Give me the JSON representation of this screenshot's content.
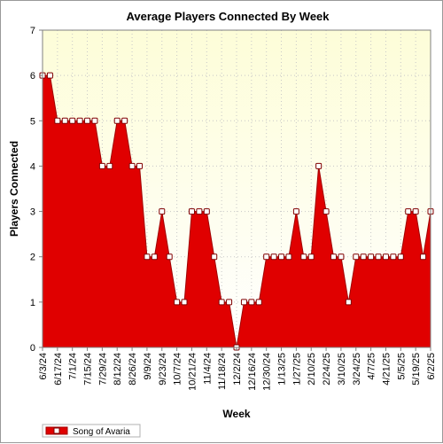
{
  "chart_data": {
    "type": "area",
    "title": "Average Players Connected By Week",
    "xlabel": "Week",
    "ylabel": "Players Connected",
    "ylim": [
      0,
      7
    ],
    "yticks": [
      0,
      1,
      2,
      3,
      4,
      5,
      6,
      7
    ],
    "grid": true,
    "legend_position": "bottom-left",
    "x": [
      "6/3/24",
      "6/10/24",
      "6/17/24",
      "6/24/24",
      "7/1/24",
      "7/8/24",
      "7/15/24",
      "7/22/24",
      "7/29/24",
      "8/5/24",
      "8/12/24",
      "8/19/24",
      "8/26/24",
      "9/2/24",
      "9/9/24",
      "9/16/24",
      "9/23/24",
      "9/30/24",
      "10/7/24",
      "10/14/24",
      "10/21/24",
      "10/28/24",
      "11/4/24",
      "11/11/24",
      "11/18/24",
      "11/25/24",
      "12/2/24",
      "12/9/24",
      "12/16/24",
      "12/23/24",
      "12/30/24",
      "1/6/25",
      "1/13/25",
      "1/20/25",
      "1/27/25",
      "2/3/25",
      "2/10/25",
      "2/17/25",
      "2/24/25",
      "3/3/25",
      "3/10/25",
      "3/17/25",
      "3/24/25",
      "3/31/25",
      "4/7/25",
      "4/14/25",
      "4/21/25",
      "4/28/25",
      "5/5/25",
      "5/12/25",
      "5/19/25",
      "5/26/25",
      "6/2/25"
    ],
    "x_tick_labels": [
      "6/3/24",
      "6/17/24",
      "7/1/24",
      "7/15/24",
      "7/29/24",
      "8/12/24",
      "8/26/24",
      "9/9/24",
      "9/23/24",
      "10/7/24",
      "10/21/24",
      "11/4/24",
      "11/18/24",
      "12/2/24",
      "12/16/24",
      "12/30/24",
      "1/13/25",
      "1/27/25",
      "2/10/25",
      "2/24/25",
      "3/10/25",
      "3/24/25",
      "4/7/25",
      "4/21/25",
      "5/5/25",
      "5/19/25",
      "6/2/25"
    ],
    "series": [
      {
        "name": "Song of Avaria",
        "values": [
          6,
          6,
          5,
          5,
          5,
          5,
          5,
          5,
          4,
          4,
          5,
          5,
          4,
          4,
          2,
          2,
          3,
          2,
          1,
          1,
          3,
          3,
          3,
          2,
          1,
          1,
          0,
          1,
          1,
          1,
          2,
          2,
          2,
          2,
          3,
          2,
          2,
          4,
          3,
          2,
          2,
          1,
          2,
          2,
          2,
          2,
          2,
          2,
          2,
          3,
          3,
          2,
          3
        ]
      }
    ],
    "colors": {
      "area_fill": "#e00000",
      "area_line": "#a00000",
      "plot_background_top": "#fdfdd8",
      "plot_background_bottom": "#ffffff",
      "grid": "#c8c8c8",
      "marker_fill": "#ffffff",
      "marker_stroke": "#800000"
    }
  }
}
